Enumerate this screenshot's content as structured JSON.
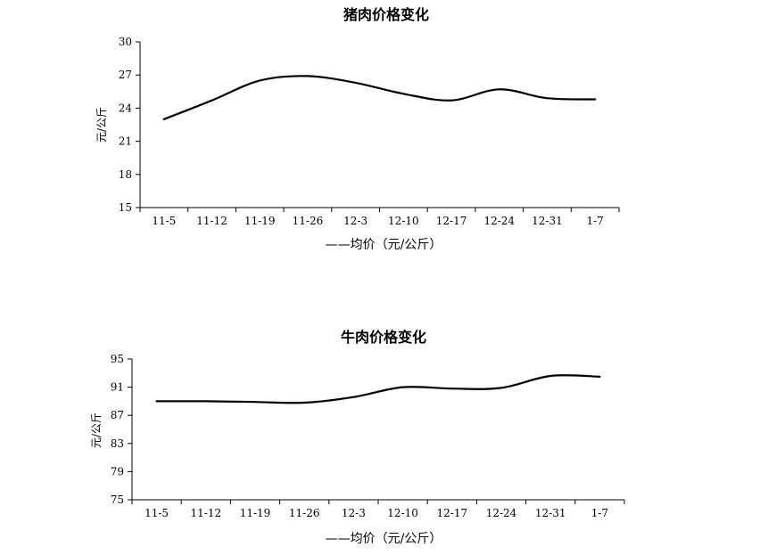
{
  "chart_data": [
    {
      "type": "line",
      "title": "猪肉价格变化",
      "ylabel": "元/公斤",
      "categories": [
        "11-5",
        "11-12",
        "11-19",
        "11-26",
        "12-3",
        "12-10",
        "12-17",
        "12-24",
        "12-31",
        "1-7"
      ],
      "yticks": [
        "15",
        "18",
        "21",
        "24",
        "27",
        "30"
      ],
      "ylim": [
        15,
        30
      ],
      "grid": false,
      "series": [
        {
          "name": "——均价（元/公斤）",
          "values": [
            23.0,
            24.7,
            26.5,
            26.9,
            26.3,
            25.3,
            24.7,
            25.7,
            24.9,
            24.8
          ]
        }
      ]
    },
    {
      "type": "line",
      "title": "牛肉价格变化",
      "ylabel": "元/公斤",
      "categories": [
        "11-5",
        "11-12",
        "11-19",
        "11-26",
        "12-3",
        "12-10",
        "12-17",
        "12-24",
        "12-31",
        "1-7"
      ],
      "yticks": [
        "75",
        "79",
        "83",
        "87",
        "91",
        "95"
      ],
      "ylim": [
        75,
        95
      ],
      "grid": false,
      "series": [
        {
          "name": "——均价（元/公斤）",
          "values": [
            89.0,
            89.0,
            88.9,
            88.8,
            89.6,
            91.0,
            90.8,
            90.9,
            92.6,
            92.5
          ]
        }
      ]
    }
  ]
}
